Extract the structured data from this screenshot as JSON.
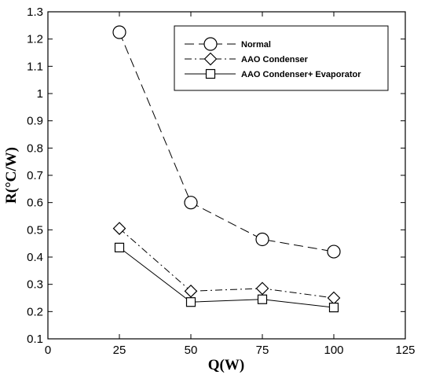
{
  "chart_data": {
    "type": "line",
    "xlabel": "Q(W)",
    "ylabel": "R(°C/W)",
    "xlim": [
      0,
      125
    ],
    "ylim": [
      0.1,
      1.3
    ],
    "xticks": [
      0,
      25,
      50,
      75,
      100,
      125
    ],
    "xtick_labels": [
      "0",
      "25",
      "50",
      "75",
      "100",
      "125"
    ],
    "yticks": [
      0.1,
      0.2,
      0.3,
      0.4,
      0.5,
      0.6,
      0.7,
      0.8,
      0.9,
      1.0,
      1.1,
      1.2,
      1.3
    ],
    "ytick_labels": [
      "0.1",
      "0.2",
      "0.3",
      "0.4",
      "0.5",
      "0.6",
      "0.7",
      "0.8",
      "0.9",
      "1",
      "1.1",
      "1.2",
      "1.3"
    ],
    "grid": false,
    "legend_position": "top-right",
    "x": [
      25,
      50,
      75,
      100
    ],
    "series": [
      {
        "name": "Normal",
        "values": [
          1.225,
          0.6,
          0.465,
          0.42
        ],
        "marker": "circle",
        "line_style": "long-dash",
        "color": "#000000"
      },
      {
        "name": "AAO Condenser",
        "values": [
          0.505,
          0.275,
          0.285,
          0.25
        ],
        "marker": "diamond",
        "line_style": "dash-dot",
        "color": "#000000"
      },
      {
        "name": "AAO Condenser+ Evaporator",
        "values": [
          0.435,
          0.235,
          0.245,
          0.215
        ],
        "marker": "square",
        "line_style": "solid",
        "color": "#000000"
      }
    ]
  }
}
